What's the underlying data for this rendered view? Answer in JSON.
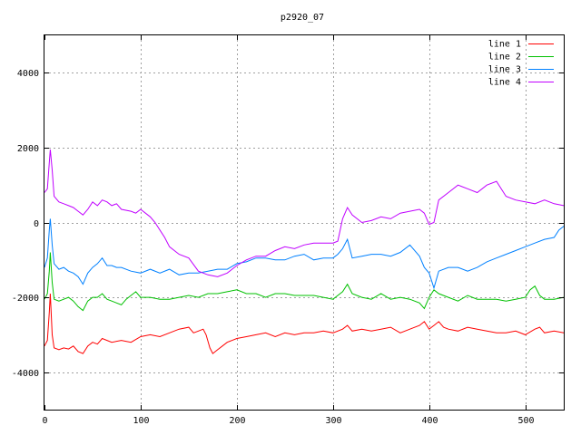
{
  "chart_data": {
    "type": "line",
    "title": "p2920_07",
    "xlabel": "",
    "ylabel": "",
    "xlim": [
      0,
      540
    ],
    "ylim": [
      -5000,
      5000
    ],
    "x_ticks": [
      0,
      100,
      200,
      300,
      400,
      500
    ],
    "y_ticks": [
      -4000,
      -2000,
      0,
      2000,
      4000
    ],
    "grid": true,
    "legend_position": "top-right",
    "series": [
      {
        "name": "line 1",
        "color": "#ff0000",
        "points": [
          [
            0,
            -3300
          ],
          [
            3,
            -3150
          ],
          [
            5,
            -2400
          ],
          [
            6,
            -1900
          ],
          [
            8,
            -3000
          ],
          [
            10,
            -3350
          ],
          [
            15,
            -3400
          ],
          [
            20,
            -3350
          ],
          [
            25,
            -3380
          ],
          [
            30,
            -3300
          ],
          [
            35,
            -3450
          ],
          [
            40,
            -3500
          ],
          [
            45,
            -3300
          ],
          [
            50,
            -3200
          ],
          [
            55,
            -3250
          ],
          [
            60,
            -3100
          ],
          [
            70,
            -3200
          ],
          [
            80,
            -3150
          ],
          [
            90,
            -3200
          ],
          [
            100,
            -3050
          ],
          [
            110,
            -3000
          ],
          [
            120,
            -3050
          ],
          [
            130,
            -2950
          ],
          [
            140,
            -2850
          ],
          [
            150,
            -2800
          ],
          [
            155,
            -2950
          ],
          [
            160,
            -2900
          ],
          [
            165,
            -2850
          ],
          [
            168,
            -3000
          ],
          [
            172,
            -3350
          ],
          [
            175,
            -3500
          ],
          [
            180,
            -3400
          ],
          [
            185,
            -3300
          ],
          [
            190,
            -3200
          ],
          [
            200,
            -3100
          ],
          [
            210,
            -3050
          ],
          [
            220,
            -3000
          ],
          [
            230,
            -2950
          ],
          [
            240,
            -3050
          ],
          [
            250,
            -2950
          ],
          [
            260,
            -3000
          ],
          [
            270,
            -2950
          ],
          [
            280,
            -2950
          ],
          [
            290,
            -2900
          ],
          [
            300,
            -2950
          ],
          [
            310,
            -2850
          ],
          [
            315,
            -2750
          ],
          [
            320,
            -2900
          ],
          [
            330,
            -2850
          ],
          [
            340,
            -2900
          ],
          [
            350,
            -2850
          ],
          [
            360,
            -2800
          ],
          [
            370,
            -2950
          ],
          [
            380,
            -2850
          ],
          [
            390,
            -2750
          ],
          [
            395,
            -2650
          ],
          [
            400,
            -2850
          ],
          [
            405,
            -2750
          ],
          [
            410,
            -2650
          ],
          [
            415,
            -2800
          ],
          [
            420,
            -2850
          ],
          [
            430,
            -2900
          ],
          [
            440,
            -2800
          ],
          [
            450,
            -2850
          ],
          [
            460,
            -2900
          ],
          [
            470,
            -2950
          ],
          [
            480,
            -2950
          ],
          [
            490,
            -2900
          ],
          [
            500,
            -3000
          ],
          [
            510,
            -2850
          ],
          [
            515,
            -2800
          ],
          [
            520,
            -2950
          ],
          [
            530,
            -2900
          ],
          [
            540,
            -2950
          ]
        ]
      },
      {
        "name": "line 2",
        "color": "#00c000",
        "points": [
          [
            0,
            -2050
          ],
          [
            3,
            -1900
          ],
          [
            5,
            -1300
          ],
          [
            6,
            -800
          ],
          [
            8,
            -1600
          ],
          [
            10,
            -2050
          ],
          [
            15,
            -2100
          ],
          [
            20,
            -2050
          ],
          [
            25,
            -2000
          ],
          [
            30,
            -2100
          ],
          [
            35,
            -2250
          ],
          [
            40,
            -2350
          ],
          [
            45,
            -2100
          ],
          [
            50,
            -2000
          ],
          [
            55,
            -2000
          ],
          [
            60,
            -1900
          ],
          [
            65,
            -2050
          ],
          [
            70,
            -2100
          ],
          [
            80,
            -2200
          ],
          [
            85,
            -2050
          ],
          [
            90,
            -1950
          ],
          [
            95,
            -1850
          ],
          [
            100,
            -2000
          ],
          [
            110,
            -2000
          ],
          [
            120,
            -2050
          ],
          [
            130,
            -2050
          ],
          [
            140,
            -2000
          ],
          [
            150,
            -1950
          ],
          [
            160,
            -2000
          ],
          [
            170,
            -1900
          ],
          [
            180,
            -1900
          ],
          [
            190,
            -1850
          ],
          [
            200,
            -1800
          ],
          [
            210,
            -1900
          ],
          [
            220,
            -1900
          ],
          [
            230,
            -2000
          ],
          [
            240,
            -1900
          ],
          [
            250,
            -1900
          ],
          [
            260,
            -1950
          ],
          [
            270,
            -1950
          ],
          [
            280,
            -1950
          ],
          [
            290,
            -2000
          ],
          [
            300,
            -2050
          ],
          [
            305,
            -1950
          ],
          [
            310,
            -1850
          ],
          [
            315,
            -1650
          ],
          [
            320,
            -1900
          ],
          [
            330,
            -2000
          ],
          [
            340,
            -2050
          ],
          [
            350,
            -1900
          ],
          [
            360,
            -2050
          ],
          [
            370,
            -2000
          ],
          [
            380,
            -2050
          ],
          [
            390,
            -2150
          ],
          [
            395,
            -2300
          ],
          [
            400,
            -2000
          ],
          [
            405,
            -1800
          ],
          [
            410,
            -1900
          ],
          [
            420,
            -2000
          ],
          [
            430,
            -2100
          ],
          [
            440,
            -1950
          ],
          [
            450,
            -2050
          ],
          [
            460,
            -2050
          ],
          [
            470,
            -2050
          ],
          [
            480,
            -2100
          ],
          [
            490,
            -2050
          ],
          [
            500,
            -2000
          ],
          [
            505,
            -1800
          ],
          [
            510,
            -1700
          ],
          [
            515,
            -1950
          ],
          [
            520,
            -2050
          ],
          [
            530,
            -2050
          ],
          [
            540,
            -2000
          ]
        ]
      },
      {
        "name": "line 3",
        "color": "#0080ff",
        "points": [
          [
            0,
            -1200
          ],
          [
            3,
            -950
          ],
          [
            5,
            -200
          ],
          [
            6,
            100
          ],
          [
            8,
            -600
          ],
          [
            10,
            -1100
          ],
          [
            15,
            -1250
          ],
          [
            20,
            -1200
          ],
          [
            25,
            -1300
          ],
          [
            30,
            -1350
          ],
          [
            35,
            -1450
          ],
          [
            40,
            -1650
          ],
          [
            45,
            -1350
          ],
          [
            50,
            -1200
          ],
          [
            55,
            -1100
          ],
          [
            60,
            -950
          ],
          [
            65,
            -1150
          ],
          [
            70,
            -1150
          ],
          [
            75,
            -1200
          ],
          [
            80,
            -1200
          ],
          [
            90,
            -1300
          ],
          [
            100,
            -1350
          ],
          [
            110,
            -1250
          ],
          [
            120,
            -1350
          ],
          [
            130,
            -1250
          ],
          [
            140,
            -1400
          ],
          [
            150,
            -1350
          ],
          [
            160,
            -1350
          ],
          [
            170,
            -1300
          ],
          [
            180,
            -1250
          ],
          [
            190,
            -1250
          ],
          [
            200,
            -1100
          ],
          [
            210,
            -1050
          ],
          [
            220,
            -950
          ],
          [
            230,
            -950
          ],
          [
            240,
            -1000
          ],
          [
            250,
            -1000
          ],
          [
            260,
            -900
          ],
          [
            270,
            -850
          ],
          [
            280,
            -1000
          ],
          [
            290,
            -950
          ],
          [
            300,
            -950
          ],
          [
            305,
            -850
          ],
          [
            310,
            -700
          ],
          [
            315,
            -450
          ],
          [
            320,
            -950
          ],
          [
            330,
            -900
          ],
          [
            340,
            -850
          ],
          [
            350,
            -850
          ],
          [
            360,
            -900
          ],
          [
            370,
            -800
          ],
          [
            380,
            -600
          ],
          [
            390,
            -900
          ],
          [
            395,
            -1200
          ],
          [
            400,
            -1350
          ],
          [
            405,
            -1750
          ],
          [
            410,
            -1300
          ],
          [
            420,
            -1200
          ],
          [
            430,
            -1200
          ],
          [
            440,
            -1300
          ],
          [
            450,
            -1200
          ],
          [
            460,
            -1050
          ],
          [
            470,
            -950
          ],
          [
            480,
            -850
          ],
          [
            490,
            -750
          ],
          [
            500,
            -650
          ],
          [
            510,
            -550
          ],
          [
            520,
            -450
          ],
          [
            530,
            -400
          ],
          [
            535,
            -200
          ],
          [
            540,
            -100
          ]
        ]
      },
      {
        "name": "line 4",
        "color": "#c000ff",
        "points": [
          [
            0,
            800
          ],
          [
            3,
            900
          ],
          [
            5,
            1600
          ],
          [
            6,
            1950
          ],
          [
            8,
            1400
          ],
          [
            10,
            700
          ],
          [
            15,
            550
          ],
          [
            20,
            500
          ],
          [
            25,
            450
          ],
          [
            30,
            400
          ],
          [
            35,
            300
          ],
          [
            40,
            200
          ],
          [
            45,
            350
          ],
          [
            50,
            550
          ],
          [
            55,
            450
          ],
          [
            60,
            600
          ],
          [
            65,
            550
          ],
          [
            70,
            450
          ],
          [
            75,
            500
          ],
          [
            80,
            350
          ],
          [
            90,
            300
          ],
          [
            95,
            250
          ],
          [
            100,
            350
          ],
          [
            110,
            150
          ],
          [
            115,
            0
          ],
          [
            120,
            -200
          ],
          [
            125,
            -400
          ],
          [
            130,
            -650
          ],
          [
            140,
            -850
          ],
          [
            150,
            -950
          ],
          [
            160,
            -1300
          ],
          [
            170,
            -1400
          ],
          [
            180,
            -1450
          ],
          [
            190,
            -1350
          ],
          [
            200,
            -1150
          ],
          [
            210,
            -1000
          ],
          [
            220,
            -900
          ],
          [
            230,
            -900
          ],
          [
            240,
            -750
          ],
          [
            250,
            -650
          ],
          [
            260,
            -700
          ],
          [
            270,
            -600
          ],
          [
            280,
            -550
          ],
          [
            290,
            -550
          ],
          [
            300,
            -550
          ],
          [
            305,
            -500
          ],
          [
            310,
            100
          ],
          [
            315,
            400
          ],
          [
            320,
            200
          ],
          [
            330,
            0
          ],
          [
            340,
            50
          ],
          [
            350,
            150
          ],
          [
            360,
            100
          ],
          [
            370,
            250
          ],
          [
            380,
            300
          ],
          [
            390,
            350
          ],
          [
            395,
            250
          ],
          [
            400,
            -50
          ],
          [
            405,
            0
          ],
          [
            410,
            600
          ],
          [
            420,
            800
          ],
          [
            430,
            1000
          ],
          [
            440,
            900
          ],
          [
            450,
            800
          ],
          [
            460,
            1000
          ],
          [
            470,
            1100
          ],
          [
            480,
            700
          ],
          [
            490,
            600
          ],
          [
            500,
            550
          ],
          [
            510,
            500
          ],
          [
            520,
            600
          ],
          [
            530,
            500
          ],
          [
            540,
            450
          ]
        ]
      }
    ]
  }
}
